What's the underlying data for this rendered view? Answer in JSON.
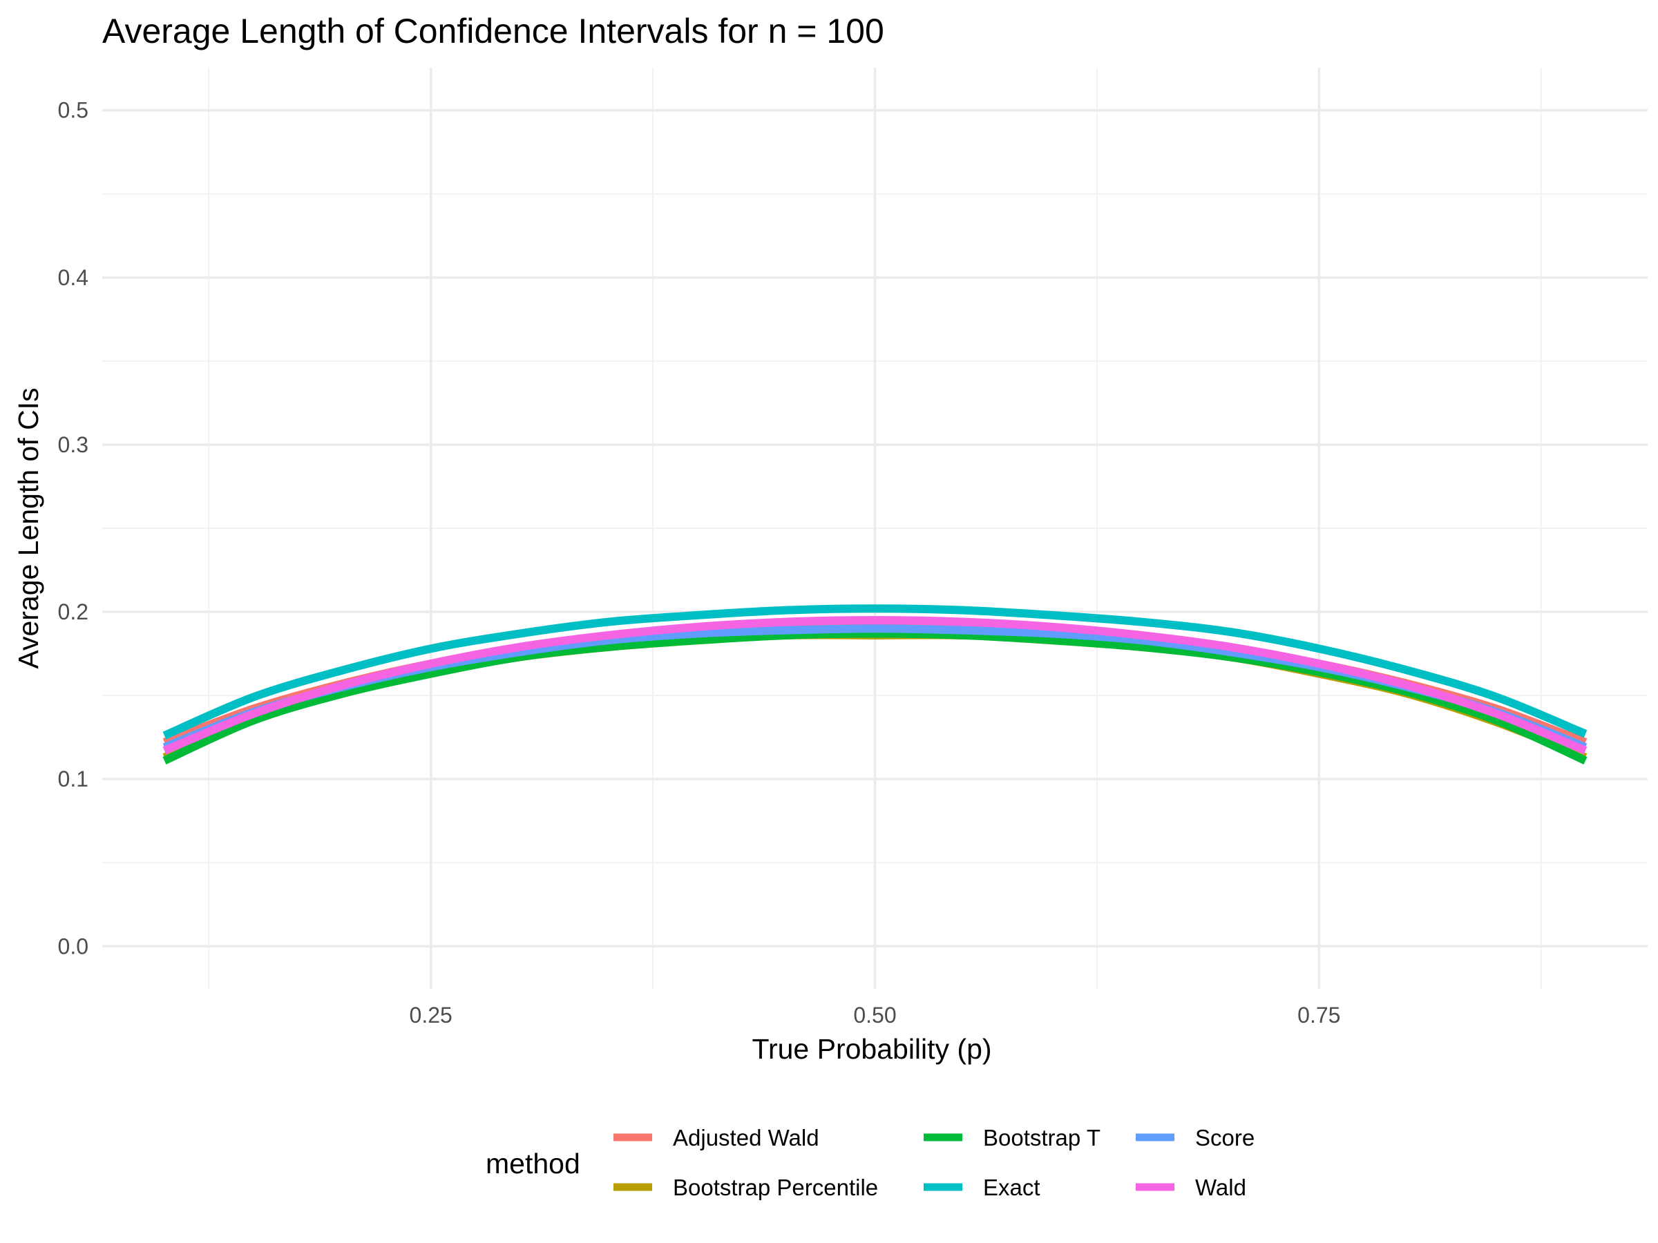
{
  "chart_data": {
    "type": "line",
    "title": "Average Length of Confidence Intervals for n = 100",
    "xlabel": "True Probability (p)",
    "ylabel": "Average Length of CIs",
    "xlim": [
      0.065,
      0.935
    ],
    "ylim": [
      -0.0255,
      0.5255
    ],
    "x_ticks": [
      0.25,
      0.5,
      0.75
    ],
    "x_tick_labels": [
      "0.25",
      "0.50",
      "0.75"
    ],
    "x_minor_ticks": [
      0.125,
      0.375,
      0.625,
      0.875
    ],
    "y_ticks": [
      0.0,
      0.1,
      0.2,
      0.3,
      0.4,
      0.5
    ],
    "y_tick_labels": [
      "0.0",
      "0.1",
      "0.2",
      "0.3",
      "0.4",
      "0.5"
    ],
    "y_minor_ticks": [
      0.05,
      0.15,
      0.25,
      0.35,
      0.45
    ],
    "grid": true,
    "legend": {
      "title": "method",
      "position": "bottom"
    },
    "x": [
      0.1,
      0.15,
      0.2,
      0.25,
      0.3,
      0.35,
      0.4,
      0.45,
      0.5,
      0.55,
      0.6,
      0.65,
      0.7,
      0.75,
      0.8,
      0.85,
      0.9
    ],
    "series": [
      {
        "name": "Adjusted Wald",
        "color": "#F8766D",
        "values": [
          0.122,
          0.142,
          0.157,
          0.169,
          0.178,
          0.185,
          0.189,
          0.191,
          0.192,
          0.191,
          0.189,
          0.185,
          0.178,
          0.169,
          0.157,
          0.142,
          0.122
        ]
      },
      {
        "name": "Bootstrap Percentile",
        "color": "#B79F00",
        "values": [
          0.113,
          0.136,
          0.152,
          0.164,
          0.173,
          0.179,
          0.183,
          0.186,
          0.186,
          0.186,
          0.183,
          0.179,
          0.173,
          0.163,
          0.151,
          0.134,
          0.113
        ]
      },
      {
        "name": "Bootstrap T",
        "color": "#00BA38",
        "values": [
          0.111,
          0.135,
          0.151,
          0.163,
          0.173,
          0.179,
          0.183,
          0.186,
          0.187,
          0.186,
          0.183,
          0.179,
          0.173,
          0.164,
          0.152,
          0.135,
          0.111
        ]
      },
      {
        "name": "Exact",
        "color": "#00BFC4",
        "values": [
          0.126,
          0.149,
          0.165,
          0.178,
          0.187,
          0.194,
          0.198,
          0.201,
          0.202,
          0.201,
          0.198,
          0.194,
          0.188,
          0.178,
          0.165,
          0.149,
          0.127
        ]
      },
      {
        "name": "Score",
        "color": "#619CFF",
        "values": [
          0.119,
          0.14,
          0.155,
          0.167,
          0.176,
          0.183,
          0.187,
          0.189,
          0.19,
          0.189,
          0.187,
          0.183,
          0.176,
          0.167,
          0.155,
          0.14,
          0.119
        ]
      },
      {
        "name": "Wald",
        "color": "#F564E3",
        "values": [
          0.117,
          0.139,
          0.156,
          0.169,
          0.179,
          0.186,
          0.191,
          0.194,
          0.195,
          0.194,
          0.191,
          0.186,
          0.179,
          0.169,
          0.156,
          0.139,
          0.117
        ]
      }
    ]
  }
}
